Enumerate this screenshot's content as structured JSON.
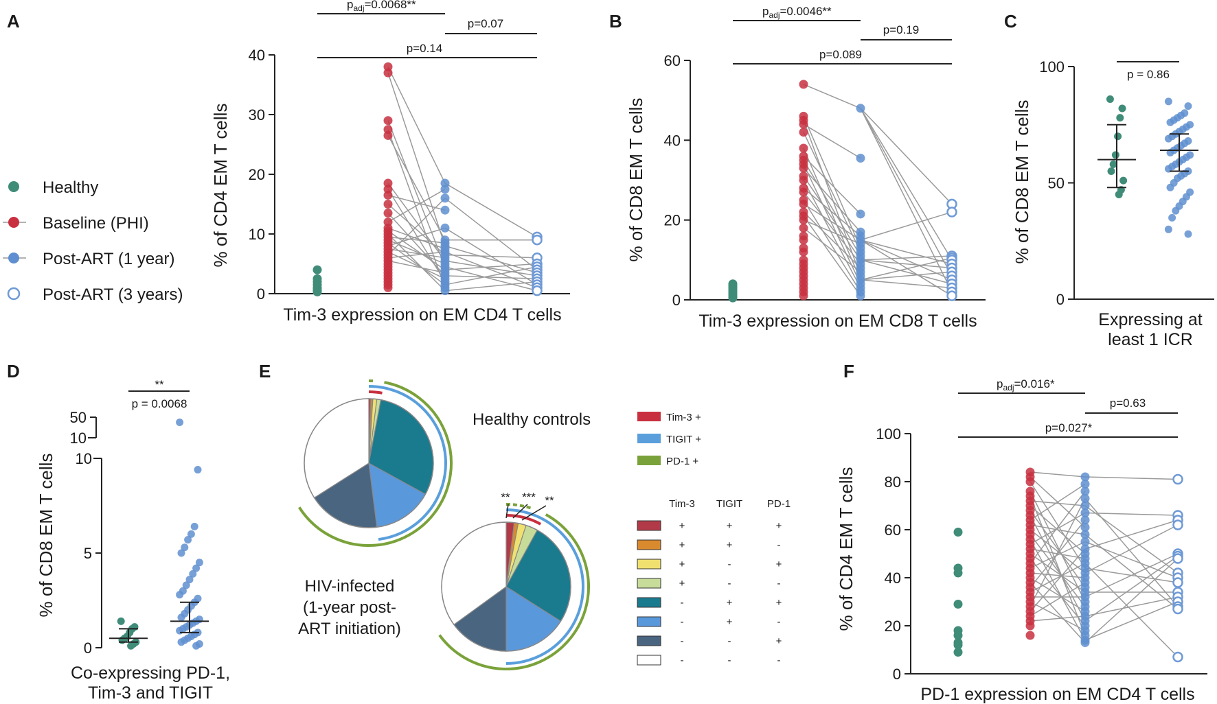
{
  "colors": {
    "healthy": "#3f8c78",
    "baseline": "#c8303f",
    "post1": "#5f8fd0",
    "post3": "#6f9ad6",
    "line": "#9a9a9a",
    "tim3": "#c8303f",
    "tigit": "#5a9fdc",
    "pd1": "#7aa23a",
    "s_ttp": "#b23a48",
    "s_ttn": "#d98a2e",
    "s_tnp": "#f0e070",
    "s_tnn": "#c8dc9a",
    "s_ntp": "#1a7a8e",
    "s_ntn": "#5a98dc",
    "s_nnp": "#4a6580",
    "s_nnn": "#ffffff"
  },
  "legend": {
    "healthy": "Healthy",
    "baseline": "Baseline (PHI)",
    "post1": "Post-ART (1 year)",
    "post3": "Post-ART (3 years)"
  },
  "panels": {
    "A": {
      "letter": "A",
      "ylabel": "% of CD4 EM T cells",
      "xlabel": "Tim-3 expression on EM CD4 T cells",
      "yticks": [
        "0",
        "10",
        "20",
        "30",
        "40"
      ],
      "p_adj": "p",
      "p_adj_sub": "adj",
      "p_adj_val": "=0.0068**",
      "p2": "p=0.07",
      "p3": "p=0.14"
    },
    "B": {
      "letter": "B",
      "ylabel": "% of CD8 EM T cells",
      "xlabel": "Tim-3 expression on EM CD8 T cells",
      "yticks": [
        "0",
        "20",
        "40",
        "60"
      ],
      "p_adj": "p",
      "p_adj_sub": "adj",
      "p_adj_val": "=0.0046**",
      "p2": "p=0.19",
      "p3": "p=0.089"
    },
    "C": {
      "letter": "C",
      "ylabel": "% of CD8 EM T cells",
      "xlabel1": "Expressing at",
      "xlabel2": "least 1 ICR",
      "yticks": [
        "0",
        "50",
        "100"
      ],
      "p": "p = 0.86"
    },
    "D": {
      "letter": "D",
      "ylabel": "% of CD8 EM T cells",
      "xlabel1": "Co-expressing PD-1,",
      "xlabel2": "Tim-3 and TIGIT",
      "yticks": [
        "0",
        "5",
        "10",
        "10",
        "50"
      ],
      "stars": "**",
      "p": "p = 0.0068"
    },
    "E": {
      "letter": "E",
      "healthy_title": "Healthy controls",
      "hiv_title1": "HIV-infected",
      "hiv_title2": "(1-year post-",
      "hiv_title3": "ART initiation)",
      "marker_legend": [
        "Tim-3 +",
        "TIGIT +",
        "PD-1 +"
      ],
      "table_headers": [
        "Tim-3",
        "TIGIT",
        "PD-1"
      ],
      "table_rows": [
        [
          "+",
          "+",
          "+"
        ],
        [
          "+",
          "+",
          "-"
        ],
        [
          "+",
          "-",
          "+"
        ],
        [
          "+",
          "-",
          "-"
        ],
        [
          "-",
          "+",
          "+"
        ],
        [
          "-",
          "+",
          "-"
        ],
        [
          "-",
          "-",
          "+"
        ],
        [
          "-",
          "-",
          "-"
        ]
      ],
      "sig": [
        "**",
        "***",
        "**"
      ]
    },
    "F": {
      "letter": "F",
      "ylabel": "% of CD4 EM T cells",
      "xlabel": "PD-1 expression on EM CD4 T cells",
      "yticks": [
        "0",
        "20",
        "40",
        "60",
        "80",
        "100"
      ],
      "p_adj": "p",
      "p_adj_sub": "adj",
      "p_adj_val": "=0.016*",
      "p2": "p=0.63",
      "p3": "p=0.027*"
    }
  },
  "chart_data": [
    {
      "panel": "A",
      "type": "scatter",
      "title": "",
      "xlabel": "Tim-3 expression on EM CD4 T cells",
      "ylabel": "% of CD4 EM T cells",
      "ylim": [
        0,
        40
      ],
      "categories": [
        "Healthy",
        "Baseline (PHI)",
        "Post-ART (1 year)",
        "Post-ART (3 years)"
      ],
      "healthy": [
        4.0,
        2.5,
        2.0,
        1.5,
        1.0,
        0.8,
        0.5,
        0.3
      ],
      "baseline": [
        38,
        37,
        29,
        27.5,
        26.5,
        18.5,
        17.5,
        16.5,
        15,
        13.5,
        12,
        11,
        10.5,
        10,
        9.5,
        9,
        8.5,
        8,
        7.5,
        7,
        6.5,
        6,
        5.5,
        5,
        4.5,
        4,
        3.5,
        3,
        2.5,
        2,
        1.5,
        1
      ],
      "post1": [
        18.5,
        17.5,
        16,
        14,
        11,
        9,
        8.5,
        8,
        7.5,
        7,
        6.5,
        6,
        5.5,
        5,
        4.5,
        4,
        3.5,
        3,
        2.5,
        2,
        1.5,
        1,
        0.5
      ],
      "post3": [
        9.5,
        9,
        6,
        5,
        4.5,
        4,
        3.5,
        3,
        2.5,
        2,
        1.5,
        1,
        0.5
      ],
      "annotations": [
        "padj=0.0068**",
        "p=0.07",
        "p=0.14"
      ]
    },
    {
      "panel": "B",
      "type": "scatter",
      "xlabel": "Tim-3 expression on EM CD8 T cells",
      "ylabel": "% of CD8 EM T cells",
      "ylim": [
        0,
        60
      ],
      "healthy": [
        4,
        3.5,
        3,
        2.5,
        2,
        1.5,
        1,
        0.5
      ],
      "baseline": [
        54,
        46,
        45,
        44,
        42,
        38,
        36,
        35,
        34,
        33,
        31,
        30,
        28,
        27,
        25,
        24,
        22,
        21,
        20,
        18,
        16,
        15,
        13,
        12,
        10,
        9,
        8,
        7,
        6,
        5,
        4,
        3,
        2,
        1
      ],
      "post1": [
        48,
        35.5,
        21.5,
        17,
        16,
        15,
        14,
        13,
        12,
        11,
        10,
        9,
        8,
        7,
        6,
        5,
        4,
        3,
        2,
        1
      ],
      "post3": [
        24,
        22,
        11,
        10.5,
        10,
        9,
        8,
        7,
        6,
        5,
        4,
        3,
        2,
        1
      ],
      "annotations": [
        "padj=0.0046**",
        "p=0.19",
        "p=0.089"
      ]
    },
    {
      "panel": "C",
      "type": "scatter",
      "xlabel": "Expressing at least 1 ICR",
      "ylabel": "% of CD8 EM T cells",
      "ylim": [
        0,
        100
      ],
      "healthy": [
        86,
        82,
        78,
        70,
        62,
        58,
        55,
        51,
        47,
        45
      ],
      "healthy_summary": {
        "median": 60,
        "q1": 48,
        "q3": 75
      },
      "post1": [
        85,
        83,
        80,
        79,
        78,
        77,
        76,
        75,
        74,
        73,
        72,
        71,
        70,
        69,
        68,
        67,
        66,
        65,
        64,
        63,
        62,
        61,
        60,
        59,
        58,
        57,
        56,
        55,
        54,
        53,
        52,
        50,
        48,
        46,
        44,
        42,
        40,
        38,
        35,
        30,
        28
      ],
      "post1_summary": {
        "median": 64,
        "q1": 55,
        "q3": 71
      },
      "annotations": [
        "p = 0.86"
      ]
    },
    {
      "panel": "D",
      "type": "scatter",
      "xlabel": "Co-expressing PD-1, Tim-3 and TIGIT",
      "ylabel": "% of CD8 EM T cells",
      "ylim": [
        0,
        50
      ],
      "healthy": [
        1.4,
        1.1,
        1.0,
        0.8,
        0.6,
        0.5,
        0.4,
        0.3,
        0.2,
        0.1
      ],
      "healthy_summary": {
        "median": 0.5,
        "q1": 0.3,
        "q3": 1.0
      },
      "post1": [
        40,
        9.4,
        6.4,
        6.0,
        5.7,
        5.3,
        5.0,
        4.5,
        4.2,
        3.9,
        3.6,
        3.3,
        3.0,
        2.8,
        2.6,
        2.4,
        2.2,
        2.0,
        1.8,
        1.6,
        1.5,
        1.4,
        1.3,
        1.2,
        1.1,
        1.0,
        0.9,
        0.8,
        0.7,
        0.6,
        0.5,
        0.4,
        0.3,
        0.2,
        0.1
      ],
      "post1_summary": {
        "median": 1.4,
        "q1": 0.8,
        "q3": 2.4
      },
      "annotations": [
        "**",
        "p = 0.0068"
      ]
    },
    {
      "panel": "E",
      "type": "pie",
      "labels": [
        "Tim-3+ TIGIT+ PD-1+",
        "Tim-3+ TIGIT+ PD-1-",
        "Tim-3+ TIGIT- PD-1+",
        "Tim-3+ TIGIT- PD-1-",
        "Tim-3- TIGIT+ PD-1+",
        "Tim-3- TIGIT+ PD-1-",
        "Tim-3- TIGIT- PD-1+",
        "Tim-3- TIGIT- PD-1-"
      ],
      "series": [
        {
          "name": "Healthy controls",
          "values": [
            0.5,
            0.5,
            1,
            1,
            30,
            15,
            18,
            34
          ]
        },
        {
          "name": "HIV-infected (1-year post-ART initiation)",
          "values": [
            2,
            1,
            2,
            3,
            26,
            16,
            15,
            35
          ]
        }
      ]
    },
    {
      "panel": "F",
      "type": "scatter",
      "xlabel": "PD-1 expression on EM CD4 T cells",
      "ylabel": "% of CD4 EM T cells",
      "ylim": [
        0,
        100
      ],
      "healthy": [
        59,
        44,
        42,
        29,
        18,
        16,
        13,
        12,
        9
      ],
      "baseline": [
        84,
        82,
        80,
        76,
        74,
        72,
        70,
        68,
        66,
        64,
        62,
        60,
        58,
        56,
        54,
        52,
        50,
        48,
        46,
        44,
        42,
        40,
        38,
        36,
        34,
        32,
        30,
        28,
        26,
        24,
        22,
        20,
        16
      ],
      "post1": [
        82,
        79,
        76,
        73,
        70,
        67,
        64,
        61,
        58,
        55,
        52,
        50,
        48,
        46,
        44,
        42,
        40,
        38,
        36,
        34,
        32,
        30,
        28,
        26,
        24,
        22,
        20,
        18,
        16,
        14,
        13
      ],
      "post3": [
        81,
        66,
        64,
        62,
        50,
        49,
        48,
        42,
        40,
        38,
        34,
        32,
        30,
        28,
        27,
        7
      ],
      "annotations": [
        "padj=0.016*",
        "p=0.63",
        "p=0.027*"
      ]
    }
  ]
}
